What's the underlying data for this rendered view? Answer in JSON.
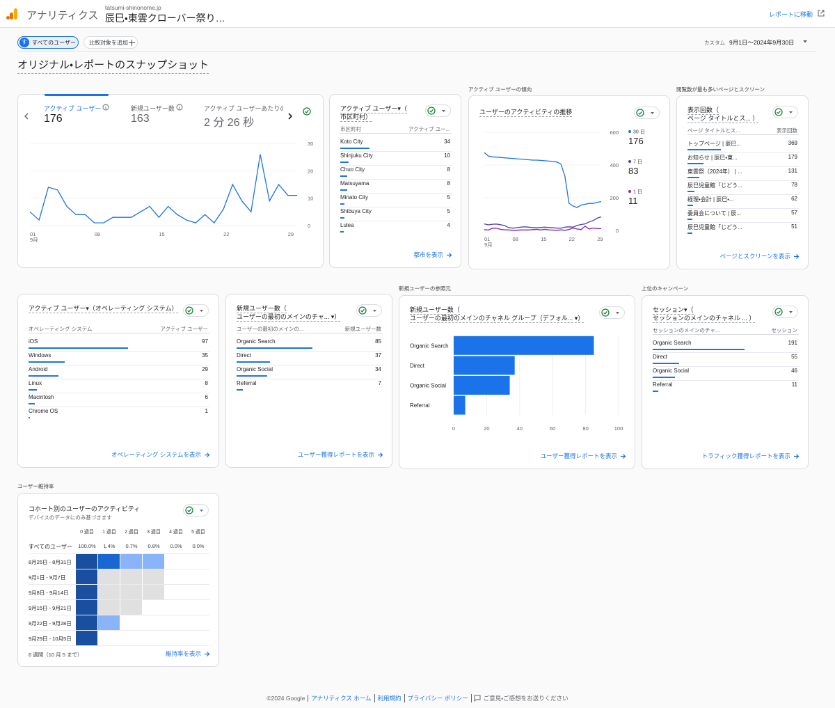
{
  "header": {
    "product": "アナリティクス",
    "property": "tatsumi-shinonome.jp",
    "report": "辰巳・東雲クローバー祭り…",
    "goto": "レポートに移動"
  },
  "filters": {
    "avatar": "す",
    "segment": "すべてのユーザー",
    "compare": "比較対象を追加",
    "range_label": "カスタム",
    "range": "9月1日～2024年9月30日"
  },
  "page_title": "オリジナル・レポートのスナップショット",
  "overview": {
    "tabs": [
      {
        "label": "アクティブ ユーザー",
        "value": 176
      },
      {
        "label": "新規ユーザー数",
        "value": 163
      },
      {
        "label": "アクティブ ユーザーあたりの",
        "value": "2 分 26 秒"
      }
    ],
    "chart": {
      "type": "line",
      "color": "#1a73e8",
      "x": [
        "01",
        null,
        null,
        null,
        null,
        null,
        null,
        "08",
        null,
        null,
        null,
        null,
        null,
        null,
        "15",
        null,
        null,
        null,
        null,
        null,
        null,
        "22",
        null,
        null,
        null,
        null,
        null,
        null,
        "29",
        null
      ],
      "month": "9月",
      "values": [
        5,
        2,
        14,
        13,
        7,
        4,
        4,
        1,
        1,
        3,
        3,
        3,
        5,
        7,
        3,
        7,
        4,
        2,
        1,
        4,
        1,
        6,
        15,
        9,
        5,
        26,
        9,
        15,
        11,
        11
      ],
      "ylim": [
        0,
        30
      ],
      "yticks": [
        0,
        10,
        20,
        30
      ],
      "grid": true
    }
  },
  "cities": {
    "title": [
      "アクティブ ユーザー▾（",
      "市区町村）"
    ],
    "columns": [
      "市区町村",
      "アクティブ ユー..."
    ],
    "rows": [
      [
        "Koto City",
        34
      ],
      [
        "Shinjuku City",
        10
      ],
      [
        "Chuo City",
        8
      ],
      [
        "Matsuyama",
        8
      ],
      [
        "Minato City",
        5
      ],
      [
        "Shibuya City",
        5
      ],
      [
        "Lulea",
        4
      ]
    ],
    "link": "都市を表示"
  },
  "trend": {
    "section": "アクティブ ユーザーの傾向",
    "chart": {
      "type": "line",
      "title": "ユーザーのアクティビティの推移",
      "x": [
        "01",
        null,
        null,
        null,
        null,
        null,
        null,
        "08",
        null,
        null,
        null,
        null,
        null,
        null,
        "15",
        null,
        null,
        null,
        null,
        null,
        null,
        "22",
        null,
        null,
        null,
        null,
        null,
        null,
        "29",
        null
      ],
      "month": "9月",
      "ylim": [
        0,
        600
      ],
      "yticks": [
        0,
        200,
        400,
        600
      ],
      "series": [
        {
          "name": "30 日",
          "color": "#1a73e8",
          "latest": 176,
          "values": [
            476,
            455,
            450,
            448,
            446,
            444,
            442,
            440,
            438,
            436,
            434,
            432,
            430,
            430,
            428,
            426,
            424,
            422,
            418,
            406,
            330,
            166,
            150,
            140,
            155,
            160,
            165,
            165,
            172,
            176
          ]
        },
        {
          "name": "7 日",
          "color": "#4b3fb5",
          "latest": 83,
          "values": [
            40,
            34,
            38,
            39,
            35,
            30,
            18,
            14,
            16,
            20,
            22,
            20,
            18,
            16,
            18,
            20,
            18,
            16,
            14,
            14,
            20,
            22,
            20,
            30,
            36,
            40,
            52,
            60,
            75,
            83
          ]
        },
        {
          "name": "1 日",
          "color": "#8e1f9e",
          "latest": 11,
          "values": [
            5,
            2,
            14,
            13,
            7,
            4,
            4,
            1,
            1,
            3,
            3,
            3,
            5,
            7,
            3,
            7,
            4,
            2,
            1,
            4,
            1,
            6,
            15,
            9,
            5,
            26,
            9,
            15,
            11,
            11
          ]
        }
      ]
    }
  },
  "pages": {
    "section": "閲覧数が最も多いページとスクリーン",
    "title": [
      "表示回数（",
      "ページ タイトルとス... ）"
    ],
    "columns": [
      "ページ タイトルとス...",
      "表示回数"
    ],
    "rows": [
      [
        "トップページ | 辰巳...",
        369
      ],
      [
        "お知らせ | 辰巳・東...",
        179
      ],
      [
        "東雲祭（2024年） | ...",
        131
      ],
      [
        "辰巳児童館「じどう...",
        78
      ],
      [
        "経理・会計 | 辰巳・...",
        62
      ],
      [
        "委員会について | 辰...",
        57
      ],
      [
        "辰巳児童館「じどう...",
        51
      ]
    ],
    "link": "ページとスクリーンを表示"
  },
  "os": {
    "title": [
      "アクティブ ユーザー▾（オペレーティング システム）"
    ],
    "columns": [
      "オペレーティング システム",
      "アクティブ ユーザー"
    ],
    "rows": [
      [
        "iOS",
        97
      ],
      [
        "Windows",
        35
      ],
      [
        "Android",
        29
      ],
      [
        "Linux",
        8
      ],
      [
        "Macintosh",
        6
      ],
      [
        "Chrome OS",
        1
      ]
    ],
    "link": "オペレーティング システムを表示"
  },
  "first_channel": {
    "title": [
      "新規ユーザー数（",
      "ユーザーの最初のメインのチャ... ▾）"
    ],
    "columns": [
      "ユーザーの最初のメインの...",
      "新規ユーザー数"
    ],
    "rows": [
      [
        "Organic Search",
        85
      ],
      [
        "Direct",
        37
      ],
      [
        "Organic Social",
        34
      ],
      [
        "Referral",
        7
      ]
    ],
    "link": "ユーザー獲得レポートを表示"
  },
  "source": {
    "section": "新規ユーザーの参照元",
    "chart": {
      "type": "bar",
      "orientation": "horizontal",
      "title": [
        "新規ユーザー数（",
        "ユーザーの最初のメインのチャネル グループ（デフォル... ▾）"
      ],
      "categories": [
        "Organic Search",
        "Direct",
        "Organic Social",
        "Referral"
      ],
      "values": [
        85,
        37,
        34,
        7
      ],
      "color": "#1a73e8",
      "xlim": [
        0,
        100
      ],
      "xticks": [
        0,
        20,
        40,
        60,
        80,
        100
      ],
      "grid": true
    },
    "link": "ユーザー獲得レポートを表示"
  },
  "campaigns": {
    "section": "上位のキャンペーン",
    "title": [
      "セッション▾（",
      "セッションのメインのチャネル ... ）"
    ],
    "columns": [
      "セッションのメインのチャ...",
      "セッション"
    ],
    "rows": [
      [
        "Organic Search",
        191
      ],
      [
        "Direct",
        55
      ],
      [
        "Organic Social",
        46
      ],
      [
        "Referral",
        11
      ]
    ],
    "link": "トラフィック獲得レポートを表示"
  },
  "retention": {
    "section": "ユーザー維持率",
    "title": "コホート別のユーザーのアクティビティ",
    "subtitle": "デバイスのデータにのみ基づきます",
    "weeks": [
      "0 週目",
      "1 週目",
      "2 週目",
      "3 週目",
      "4 週目",
      "5 週目"
    ],
    "all_label": "すべてのユーザー",
    "all_values": [
      "100.0%",
      "1.4%",
      "0.7%",
      "0.8%",
      "0.0%",
      "0.0%"
    ],
    "rows": [
      {
        "label": "8月25日 - 8月31日",
        "cells": [
          "#1a4fa0",
          "#1967d2",
          "#8ab4f8",
          "#8ab4f8"
        ]
      },
      {
        "label": "9月1日 - 9月7日",
        "cells": [
          "#1a4fa0",
          "#e0e0e0",
          "#e0e0e0",
          "#e0e0e0"
        ]
      },
      {
        "label": "9月8日 - 9月14日",
        "cells": [
          "#1a4fa0",
          "#e0e0e0",
          "#e0e0e0",
          "#e0e0e0"
        ]
      },
      {
        "label": "9月15日 - 9月21日",
        "cells": [
          "#1a4fa0",
          "#e0e0e0",
          "#e0e0e0"
        ]
      },
      {
        "label": "9月22日 - 9月28日",
        "cells": [
          "#1a4fa0",
          "#8ab4f8"
        ]
      },
      {
        "label": "9月29日 - 10月5日",
        "cells": [
          "#1a4fa0"
        ]
      }
    ],
    "footnote": "6 週間（10 月 5 まで）",
    "link": "維持率を表示"
  },
  "footer": {
    "copyright": "©2024 Google",
    "links": [
      "アナリティクス ホーム",
      "利用規約",
      "プライバシー ポリシー"
    ],
    "feedback": "ご意見・ご感想をお送りください"
  }
}
